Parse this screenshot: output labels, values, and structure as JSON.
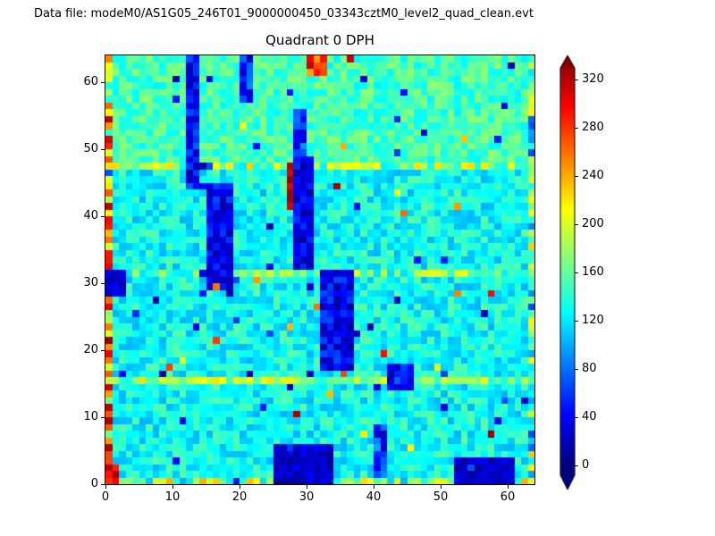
{
  "header": {
    "data_file_label": "Data file: modeM0/AS1G05_246T01_9000000450_03343cztM0_level2_quad_clean.evt"
  },
  "chart_data": {
    "type": "heatmap",
    "title": "Quadrant 0 DPH",
    "xlabel": "",
    "ylabel": "",
    "grid_size": 64,
    "x_range": [
      0,
      64
    ],
    "y_range": [
      0,
      64
    ],
    "x_ticks": [
      0,
      10,
      20,
      30,
      40,
      50,
      60
    ],
    "y_ticks": [
      0,
      10,
      20,
      30,
      40,
      50,
      60
    ],
    "colormap": "jet",
    "vmin": 0,
    "vmax": 340,
    "colorbar": {
      "ticks": [
        0,
        40,
        80,
        120,
        160,
        200,
        240,
        280,
        320
      ],
      "extend": "both",
      "under_color": "#000080",
      "over_color": "#800000"
    },
    "background_value": 130,
    "noise_amplitude": 28,
    "noise_seed": 42,
    "bands": [
      {
        "name": "top-module-greener-band",
        "y0": 48,
        "y1": 63,
        "value": 150,
        "noise": 26
      }
    ],
    "features": [
      {
        "name": "right-edge-column",
        "x0": 63,
        "x1": 63,
        "y0": 0,
        "y1": 63,
        "value": 150,
        "jitter": 85
      },
      {
        "name": "bottom-edge-row",
        "x0": 0,
        "x1": 63,
        "y0": 0,
        "y1": 0,
        "value": 170,
        "jitter": 70
      },
      {
        "name": "module-boundary-row-15",
        "x0": 0,
        "x1": 63,
        "y0": 15,
        "y1": 15,
        "value": 180,
        "jitter": 45
      },
      {
        "name": "module-boundary-row-31",
        "x0": 0,
        "x1": 63,
        "y0": 31,
        "y1": 31,
        "value": 165,
        "jitter": 50
      },
      {
        "name": "module-boundary-row-47",
        "x0": 0,
        "x1": 63,
        "y0": 47,
        "y1": 47,
        "value": 175,
        "jitter": 55
      },
      {
        "name": "left-edge-hot-column",
        "x0": 0,
        "x1": 0,
        "y0": 0,
        "y1": 63,
        "value": 235,
        "jitter": 100
      },
      {
        "name": "left-mid-dark-blob",
        "x0": 0,
        "x1": 2,
        "y0": 28,
        "y1": 31,
        "value": 30,
        "jitter": 20
      },
      {
        "name": "tall-dark-stripe-top-left",
        "x0": 12,
        "x1": 13,
        "y0": 44,
        "y1": 63,
        "value": 45,
        "jitter": 30
      },
      {
        "name": "short-dark-stripe-top",
        "x0": 20,
        "x1": 21,
        "y0": 57,
        "y1": 63,
        "value": 55,
        "jitter": 35
      },
      {
        "name": "dark-blob-mid-left",
        "x0": 15,
        "x1": 18,
        "y0": 29,
        "y1": 44,
        "value": 40,
        "jitter": 28
      },
      {
        "name": "dark-arc-center",
        "x0": 28,
        "x1": 30,
        "y0": 32,
        "y1": 48,
        "value": 35,
        "jitter": 25
      },
      {
        "name": "dark-stripe-upper-center",
        "x0": 28,
        "x1": 29,
        "y0": 49,
        "y1": 55,
        "value": 60,
        "jitter": 35
      },
      {
        "name": "red-strip-center",
        "x0": 27,
        "x1": 27,
        "y0": 41,
        "y1": 47,
        "value": 315,
        "jitter": 25
      },
      {
        "name": "curved-dark-blob-center",
        "x0": 32,
        "x1": 36,
        "y0": 17,
        "y1": 31,
        "value": 40,
        "jitter": 28
      },
      {
        "name": "dark-streak-bottom-center",
        "x0": 40,
        "x1": 41,
        "y0": 1,
        "y1": 8,
        "value": 60,
        "jitter": 40
      },
      {
        "name": "dark-cluster-right-mid",
        "x0": 42,
        "x1": 45,
        "y0": 14,
        "y1": 17,
        "value": 45,
        "jitter": 30
      },
      {
        "name": "bottom-center-dark-blob",
        "x0": 25,
        "x1": 33,
        "y0": 0,
        "y1": 5,
        "value": 25,
        "jitter": 18
      },
      {
        "name": "bottom-right-dark-blob",
        "x0": 52,
        "x1": 60,
        "y0": 0,
        "y1": 3,
        "value": 25,
        "jitter": 18
      },
      {
        "name": "bottom-left-hot-corner",
        "x0": 0,
        "x1": 1,
        "y0": 0,
        "y1": 2,
        "value": 300,
        "jitter": 35
      },
      {
        "name": "top-orange-patch",
        "x0": 30,
        "x1": 32,
        "y0": 61,
        "y1": 63,
        "value": 285,
        "jitter": 45
      }
    ],
    "speckle": {
      "dark_prob": 0.015,
      "dark_value_min": 10,
      "dark_value_max": 70,
      "hot_prob": 0.007,
      "hot_value_min": 200,
      "hot_value_max": 335
    }
  }
}
